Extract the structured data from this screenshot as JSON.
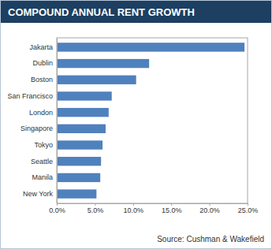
{
  "chart_data": {
    "type": "bar",
    "title": "COMPOUND ANNUAL RENT GROWTH",
    "source": "Source: Cushman & Wakefield",
    "orientation": "horizontal",
    "categories": [
      "Jakarta",
      "Dublin",
      "Boston",
      "San Francisco",
      "London",
      "Singapore",
      "Tokyo",
      "Seattle",
      "Manila",
      "New York"
    ],
    "values": [
      24.6,
      12.1,
      10.4,
      7.2,
      6.8,
      6.4,
      6.0,
      5.8,
      5.7,
      5.2
    ],
    "color": "#4f81bd",
    "xlim": [
      0,
      25
    ],
    "xticks": [
      {
        "value": 0,
        "label": "0.0%"
      },
      {
        "value": 5,
        "label": "5.0%"
      },
      {
        "value": 10,
        "label": "10.0%"
      },
      {
        "value": 15,
        "label": "15.0%"
      },
      {
        "value": 20,
        "label": "20.0%"
      },
      {
        "value": 25,
        "label": "25.0%"
      }
    ],
    "grid": false
  }
}
